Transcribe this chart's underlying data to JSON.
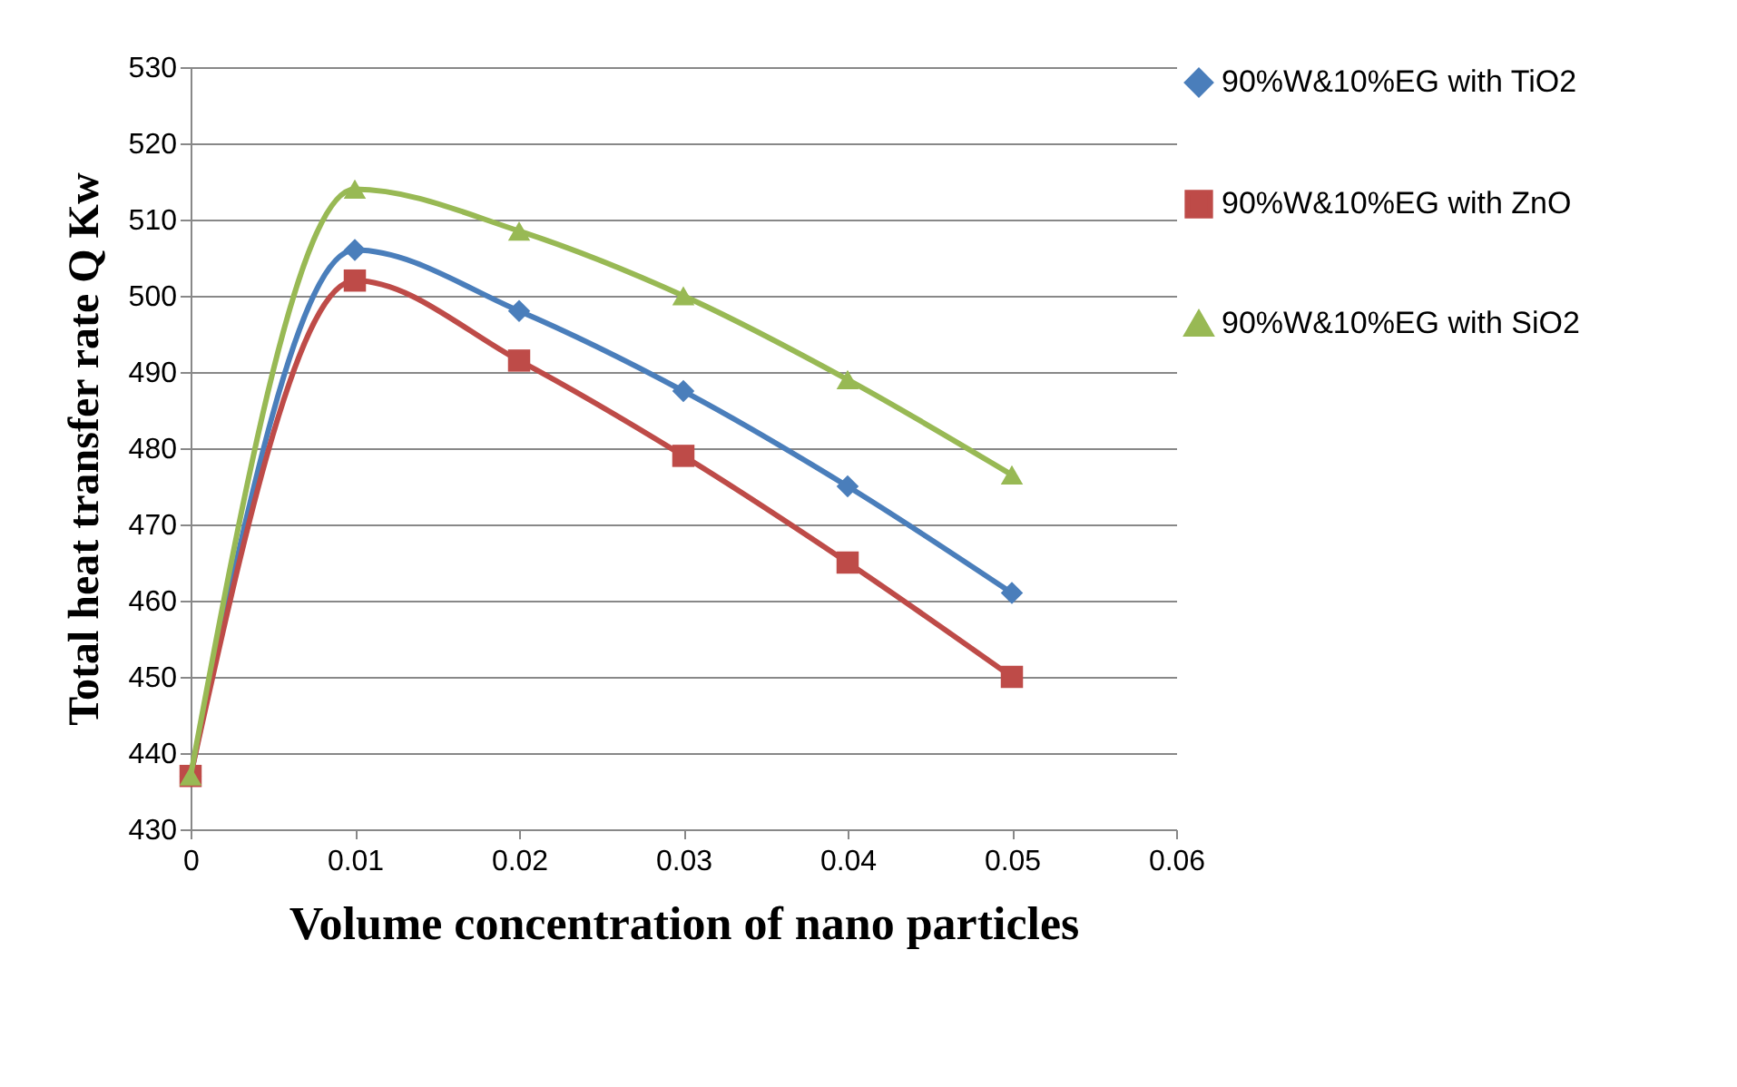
{
  "chart_data": {
    "type": "line",
    "xlabel": "Volume concentration of nano particles",
    "ylabel": "Total heat transfer rate Q Kw",
    "x": [
      0,
      0.01,
      0.02,
      0.03,
      0.04,
      0.05
    ],
    "series": [
      {
        "name": "90%W&10%EG  with TiO2",
        "color": "#4a7ebb",
        "marker": "diamond",
        "values": [
          437,
          506,
          498,
          487.5,
          475,
          461
        ]
      },
      {
        "name": "90%W&10%EG with ZnO",
        "color": "#be4b48",
        "marker": "square",
        "values": [
          437,
          502,
          491.5,
          479,
          465,
          450
        ]
      },
      {
        "name": "90%W&10%EG with SiO2",
        "color": "#98b954",
        "marker": "triangle",
        "values": [
          437,
          514,
          508.5,
          500,
          489,
          476.5
        ]
      }
    ],
    "xlim": [
      0,
      0.06
    ],
    "xticks": [
      0,
      0.01,
      0.02,
      0.03,
      0.04,
      0.05,
      0.06
    ],
    "ylim": [
      430,
      530
    ],
    "yticks": [
      430,
      440,
      450,
      460,
      470,
      480,
      490,
      500,
      510,
      520,
      530
    ],
    "grid": "y",
    "legend": "right",
    "line_style": "solid"
  }
}
